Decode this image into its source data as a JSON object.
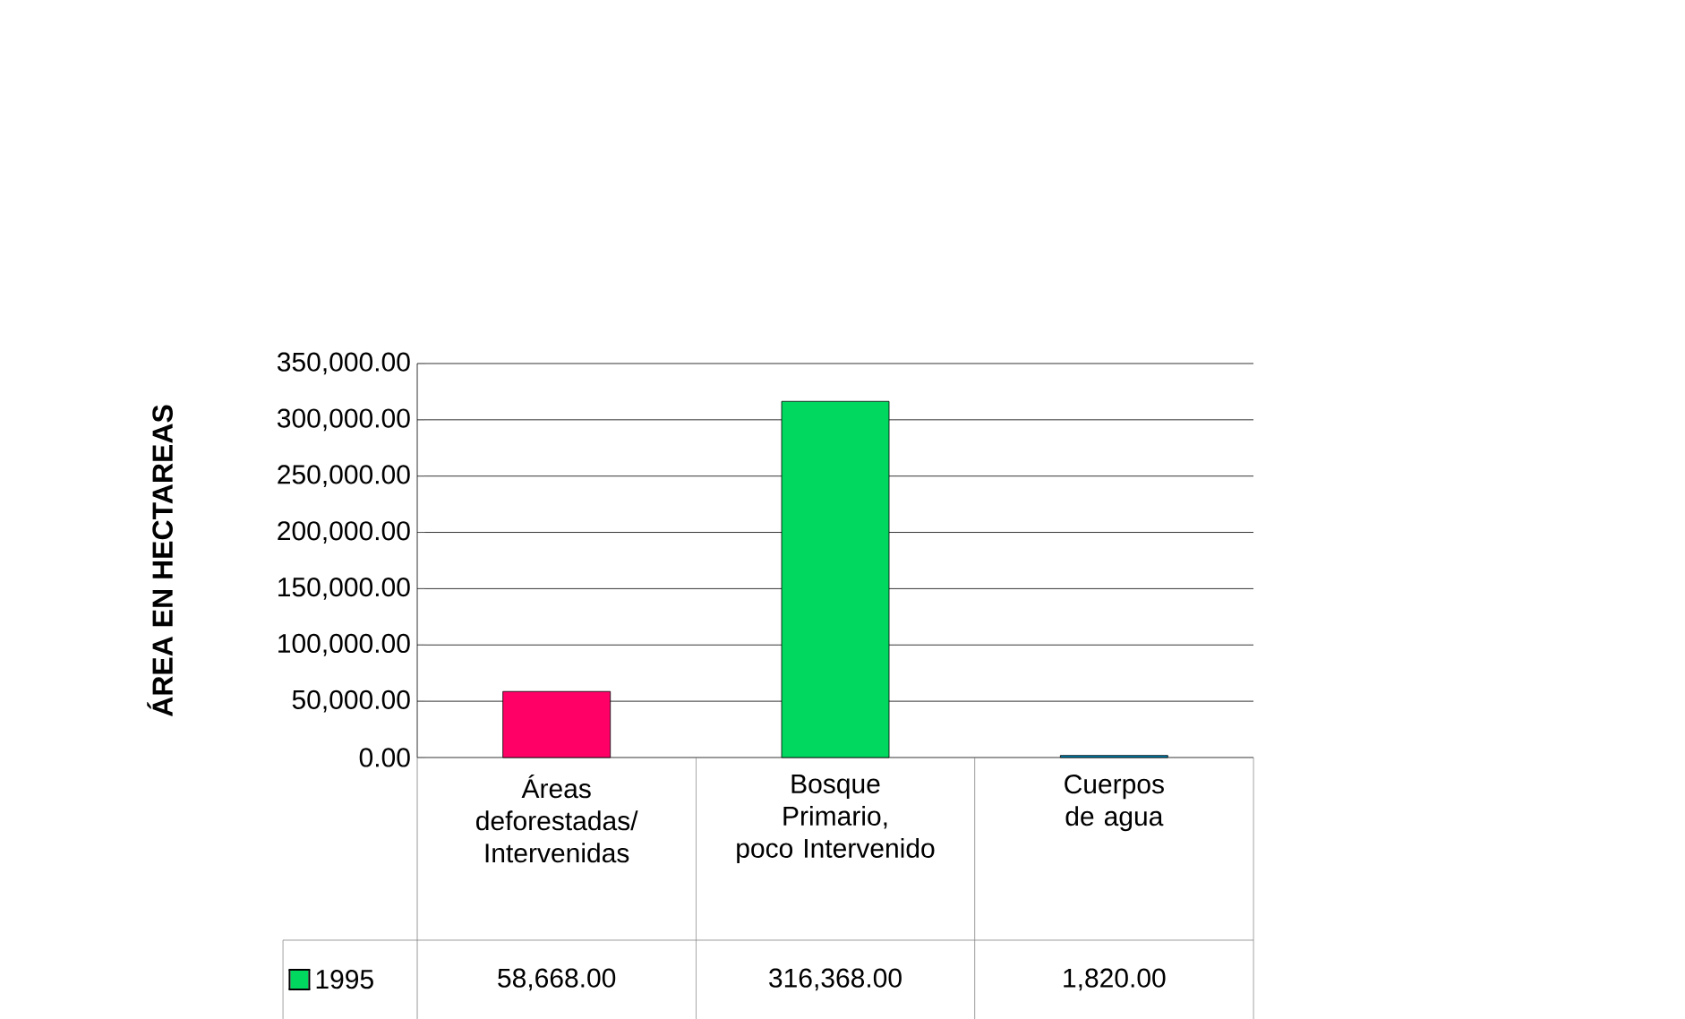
{
  "chart_data": {
    "type": "bar",
    "ylabel": "ÁREA EN HECTAREAS",
    "categories": [
      "Áreas deforestadas/ Intervenidas",
      "Bosque Primario, poco Intervenido",
      "Cuerpos de agua"
    ],
    "series": [
      {
        "name": "1995",
        "color": "#00d860",
        "colors": [
          "#ff0066",
          "#00d860",
          "#0088b8"
        ],
        "values": [
          58668,
          316368,
          1820
        ],
        "value_labels": [
          "58,668.00",
          "316,368.00",
          "1,820.00"
        ]
      }
    ],
    "ylim": [
      0,
      350000
    ],
    "yticks": [
      {
        "value": 0,
        "label": "0.00"
      },
      {
        "value": 50000,
        "label": "50,000.00"
      },
      {
        "value": 100000,
        "label": "100,000.00"
      },
      {
        "value": 150000,
        "label": "150,000.00"
      },
      {
        "value": 200000,
        "label": "200,000.00"
      },
      {
        "value": 250000,
        "label": "250,000.00"
      },
      {
        "value": 300000,
        "label": "300,000.00"
      },
      {
        "value": 350000,
        "label": "350,000.00"
      }
    ],
    "grid": "y",
    "legend": "bottom left"
  }
}
